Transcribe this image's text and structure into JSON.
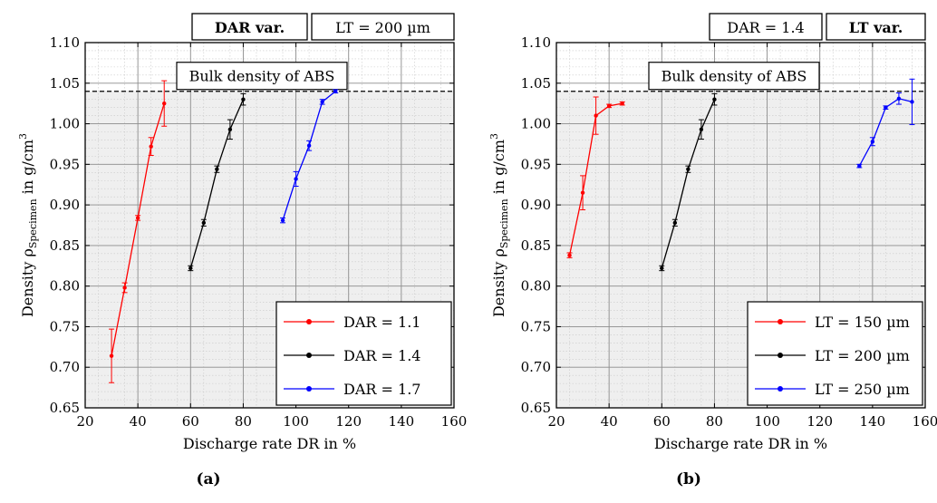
{
  "figure": {
    "captions": [
      "(a)",
      "(b)"
    ]
  },
  "chart_data": [
    {
      "type": "line",
      "panel_caption": "(a)",
      "header_boxes": [
        {
          "text": "DAR var.",
          "bold": true
        },
        {
          "text": "LT = 200 µm",
          "bold": false
        }
      ],
      "annotation": "Bulk density of ABS",
      "reference_line": {
        "y": 1.04,
        "style": "dashed"
      },
      "xlabel": "Discharge rate DR in %",
      "ylabel_parts": {
        "main": "Density ρ",
        "sub": "Specimen",
        "tail": " in g/cm",
        "sup": "3"
      },
      "xlim": [
        20,
        160
      ],
      "ylim": [
        0.65,
        1.1
      ],
      "x_ticks": [
        "20",
        "40",
        "60",
        "80",
        "100",
        "120",
        "140",
        "160"
      ],
      "y_ticks": [
        "0.65",
        "0.70",
        "0.75",
        "0.80",
        "0.85",
        "0.90",
        "0.95",
        "1.00",
        "1.05",
        "1.10"
      ],
      "grid": true,
      "legend_position": "bottom-right",
      "series": [
        {
          "name": "DAR = 1.1",
          "color": "#ff0000",
          "x": [
            30,
            35,
            40,
            45,
            50
          ],
          "y": [
            0.714,
            0.798,
            0.884,
            0.972,
            1.025
          ],
          "err": [
            0.033,
            0.006,
            0.003,
            0.011,
            0.028
          ]
        },
        {
          "name": "DAR = 1.4",
          "color": "#000000",
          "x": [
            60,
            65,
            70,
            75,
            80
          ],
          "y": [
            0.822,
            0.878,
            0.944,
            0.993,
            1.03
          ],
          "err": [
            0.003,
            0.004,
            0.004,
            0.012,
            0.007
          ]
        },
        {
          "name": "DAR = 1.7",
          "color": "#0000ff",
          "x": [
            95,
            100,
            105,
            110,
            115
          ],
          "y": [
            0.881,
            0.932,
            0.973,
            1.027,
            1.04
          ],
          "err": [
            0.003,
            0.009,
            0.006,
            0.003,
            0.002
          ]
        }
      ]
    },
    {
      "type": "line",
      "panel_caption": "(b)",
      "header_boxes": [
        {
          "text": "DAR = 1.4",
          "bold": false
        },
        {
          "text": "LT var.",
          "bold": true
        }
      ],
      "annotation": "Bulk density of ABS",
      "reference_line": {
        "y": 1.04,
        "style": "dashed"
      },
      "xlabel": "Discharge rate DR in %",
      "ylabel_parts": {
        "main": "Density ρ",
        "sub": "Specimen",
        "tail": " in g/cm",
        "sup": "3"
      },
      "xlim": [
        20,
        160
      ],
      "ylim": [
        0.65,
        1.1
      ],
      "x_ticks": [
        "20",
        "40",
        "60",
        "80",
        "100",
        "120",
        "140",
        "160"
      ],
      "y_ticks": [
        "0.65",
        "0.70",
        "0.75",
        "0.80",
        "0.85",
        "0.90",
        "0.95",
        "1.00",
        "1.05",
        "1.10"
      ],
      "grid": true,
      "legend_position": "bottom-right",
      "series": [
        {
          "name": "LT = 150 µm",
          "color": "#ff0000",
          "x": [
            25,
            30,
            35,
            40,
            45
          ],
          "y": [
            0.838,
            0.915,
            1.01,
            1.022,
            1.025
          ],
          "err": [
            0.003,
            0.021,
            0.023,
            0.002,
            0.002
          ]
        },
        {
          "name": "LT = 200 µm",
          "color": "#000000",
          "x": [
            60,
            65,
            70,
            75,
            80
          ],
          "y": [
            0.822,
            0.878,
            0.944,
            0.993,
            1.03
          ],
          "err": [
            0.003,
            0.004,
            0.004,
            0.012,
            0.007
          ]
        },
        {
          "name": "LT = 250 µm",
          "color": "#0000ff",
          "x": [
            135,
            140,
            145,
            150,
            155
          ],
          "y": [
            0.948,
            0.978,
            1.02,
            1.031,
            1.027
          ],
          "err": [
            0.002,
            0.005,
            0.002,
            0.007,
            0.028
          ]
        }
      ]
    }
  ]
}
